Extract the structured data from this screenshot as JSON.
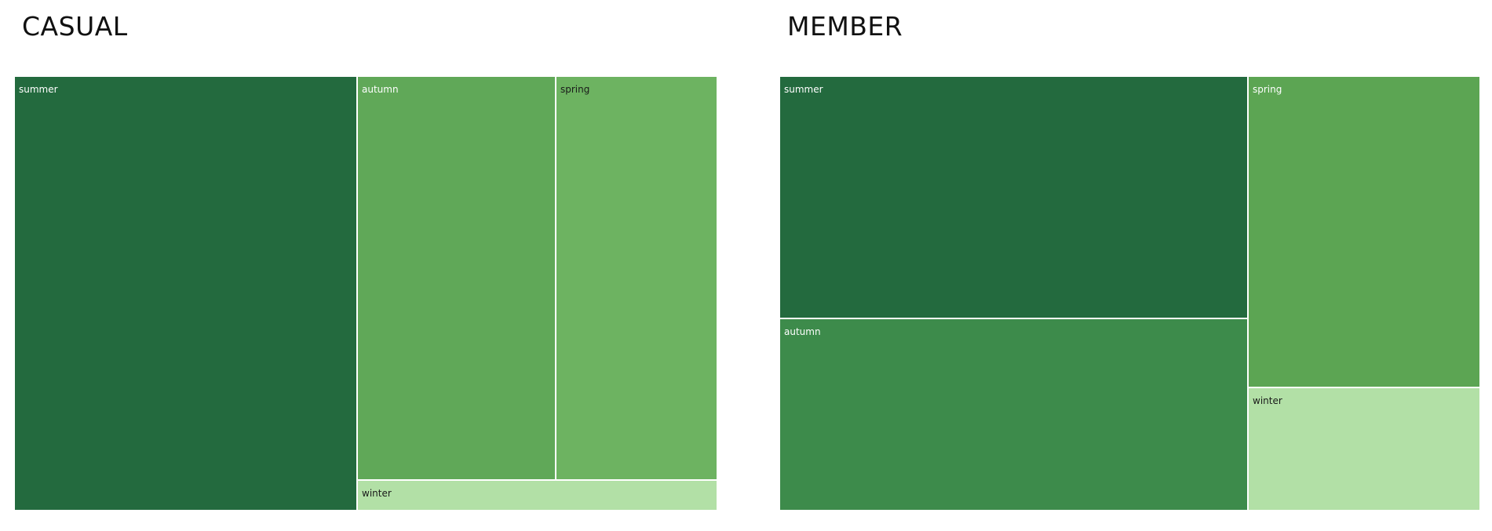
{
  "chart_data": [
    {
      "type": "treemap",
      "title": "CASUAL",
      "cells": [
        {
          "label": "summer",
          "value": 47.4,
          "color": "#236a3e",
          "text_color": "#ffffff"
        },
        {
          "label": "autumn",
          "value": 23.3,
          "color": "#60a858",
          "text_color": "#ffffff"
        },
        {
          "label": "spring",
          "value": 19.0,
          "color": "#6db361",
          "text_color": "#1a1a1a"
        },
        {
          "label": "winter",
          "value": 3.8,
          "color": "#b2e0a6",
          "text_color": "#1a1a1a"
        }
      ]
    },
    {
      "type": "treemap",
      "title": "MEMBER",
      "cells": [
        {
          "label": "summer",
          "value": 33.7,
          "color": "#236a3e",
          "text_color": "#ffffff"
        },
        {
          "label": "autumn",
          "value": 26.8,
          "color": "#3d8b4b",
          "text_color": "#ffffff"
        },
        {
          "label": "spring",
          "value": 21.5,
          "color": "#5ca553",
          "text_color": "#ffffff"
        },
        {
          "label": "winter",
          "value": 8.6,
          "color": "#b2e0a6",
          "text_color": "#1a1a1a"
        }
      ]
    }
  ]
}
